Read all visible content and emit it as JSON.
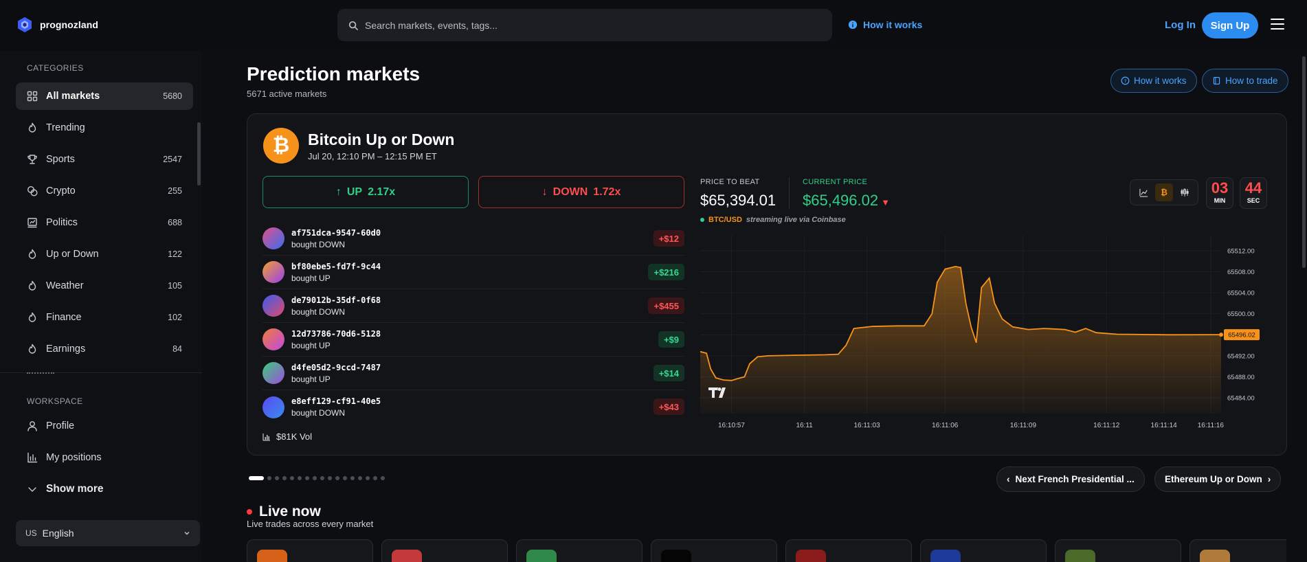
{
  "header": {
    "logo_text": "prognozland",
    "search_placeholder": "Search markets, events, tags...",
    "how_it_works": "How it works",
    "login": "Log In",
    "signup": "Sign Up"
  },
  "sidebar": {
    "categories_label": "CATEGORIES",
    "categories": [
      {
        "label": "All markets",
        "count": "5680",
        "icon": "grid-icon",
        "active": true
      },
      {
        "label": "Trending",
        "count": "",
        "icon": "flame-icon"
      },
      {
        "label": "Sports",
        "count": "2547",
        "icon": "trophy-icon"
      },
      {
        "label": "Crypto",
        "count": "255",
        "icon": "coins-icon"
      },
      {
        "label": "Politics",
        "count": "688",
        "icon": "vote-icon"
      },
      {
        "label": "Up or Down",
        "count": "122",
        "icon": "flame-icon"
      },
      {
        "label": "Weather",
        "count": "105",
        "icon": "flame-icon"
      },
      {
        "label": "Finance",
        "count": "102",
        "icon": "flame-icon"
      },
      {
        "label": "Earnings",
        "count": "84",
        "icon": "flame-icon"
      }
    ],
    "workspace_label": "WORKSPACE",
    "workspace": [
      {
        "label": "Profile",
        "icon": "user-icon"
      },
      {
        "label": "My positions",
        "icon": "bar-chart-icon"
      },
      {
        "label": "Show more",
        "icon": "chevron-down-icon"
      }
    ],
    "language": {
      "flag": "US",
      "label": "English"
    }
  },
  "main": {
    "title": "Prediction markets",
    "subtitle": "5671 active markets",
    "how_it_works": "How it works",
    "how_to_trade": "How to trade"
  },
  "market": {
    "title": "Bitcoin Up or Down",
    "time": "Jul 20, 12:10 PM – 12:15 PM ET",
    "up_label": "UP",
    "up_mult": "2.17x",
    "down_label": "DOWN",
    "down_mult": "1.72x",
    "trades": [
      {
        "id": "af751dca-9547-60d0",
        "action": "bought DOWN",
        "amount": "+$12",
        "side": "down",
        "grad": [
          "#e0508a",
          "#3a6cf0"
        ]
      },
      {
        "id": "bf80ebe5-fd7f-9c44",
        "action": "bought UP",
        "amount": "+$216",
        "side": "up",
        "grad": [
          "#f0a030",
          "#9a3ef0"
        ]
      },
      {
        "id": "de79012b-35df-0f68",
        "action": "bought DOWN",
        "amount": "+$455",
        "side": "down",
        "grad": [
          "#3a5cf0",
          "#e04a6a"
        ]
      },
      {
        "id": "12d73786-70d6-5128",
        "action": "bought UP",
        "amount": "+$9",
        "side": "up",
        "grad": [
          "#f07a3a",
          "#c04ae0"
        ]
      },
      {
        "id": "d4fe05d2-9ccd-7487",
        "action": "bought UP",
        "amount": "+$14",
        "side": "up",
        "grad": [
          "#3ad07a",
          "#a04ae0"
        ]
      },
      {
        "id": "e8eff129-cf91-40e5",
        "action": "bought DOWN",
        "amount": "+$43",
        "side": "down",
        "grad": [
          "#5a4af0",
          "#3a8cf0"
        ]
      }
    ],
    "volume": "$81K Vol",
    "price_to_beat_label": "PRICE TO BEAT",
    "price_to_beat": "$65,394.01",
    "current_price_label": "CURRENT PRICE",
    "current_price": "$65,496.02",
    "pair": "BTC/USD",
    "stream_text": "streaming live via Coinbase",
    "timer_min": "03",
    "timer_min_label": "MIN",
    "timer_sec": "44",
    "timer_sec_label": "SEC"
  },
  "chart_data": {
    "type": "area",
    "x_ticks": [
      "16:10:57",
      "16:11",
      "16:11:03",
      "16:11:06",
      "16:11:09",
      "16:11:12",
      "16:11:14",
      "16:11:16"
    ],
    "y_ticks": [
      65512,
      65508,
      65504,
      65500,
      65496,
      65492,
      65488,
      65484
    ],
    "y_tick_labels": [
      "65512.00",
      "65508.00",
      "65504.00",
      "65500.00",
      "65496.00",
      "65492.00",
      "65488.00",
      "65484.00"
    ],
    "ylim": [
      65481,
      65515
    ],
    "current_label": "65496.02",
    "current_value": 65496.02,
    "color": "#f7931a",
    "series": [
      {
        "values": [
          [
            0,
            65492.8
          ],
          [
            0.012,
            65492.5
          ],
          [
            0.02,
            65489.5
          ],
          [
            0.03,
            65487.8
          ],
          [
            0.045,
            65487.4
          ],
          [
            0.06,
            65487.3
          ],
          [
            0.07,
            65487.6
          ],
          [
            0.085,
            65488.0
          ],
          [
            0.095,
            65490.5
          ],
          [
            0.11,
            65491.8
          ],
          [
            0.13,
            65492.0
          ],
          [
            0.18,
            65492.1
          ],
          [
            0.24,
            65492.2
          ],
          [
            0.265,
            65492.3
          ],
          [
            0.28,
            65494.0
          ],
          [
            0.295,
            65497.2
          ],
          [
            0.33,
            65497.6
          ],
          [
            0.38,
            65497.7
          ],
          [
            0.43,
            65497.7
          ],
          [
            0.445,
            65500.0
          ],
          [
            0.455,
            65506.0
          ],
          [
            0.47,
            65508.5
          ],
          [
            0.49,
            65509.0
          ],
          [
            0.5,
            65508.8
          ],
          [
            0.51,
            65502.0
          ],
          [
            0.52,
            65497.5
          ],
          [
            0.53,
            65494.5
          ],
          [
            0.54,
            65505.0
          ],
          [
            0.555,
            65506.8
          ],
          [
            0.565,
            65502.0
          ],
          [
            0.58,
            65499.0
          ],
          [
            0.6,
            65497.5
          ],
          [
            0.63,
            65497.0
          ],
          [
            0.66,
            65497.2
          ],
          [
            0.7,
            65497.0
          ],
          [
            0.72,
            65496.5
          ],
          [
            0.74,
            65497.2
          ],
          [
            0.76,
            65496.4
          ],
          [
            0.8,
            65496.1
          ],
          [
            0.9,
            65496.0
          ],
          [
            1.0,
            65496.02
          ]
        ]
      }
    ]
  },
  "carousel": {
    "prev_label": "Next French Presidential ...",
    "next_label": "Ethereum Up or Down",
    "dot_count": 17
  },
  "live": {
    "title": "Live now",
    "subtitle": "Live trades across every market"
  }
}
